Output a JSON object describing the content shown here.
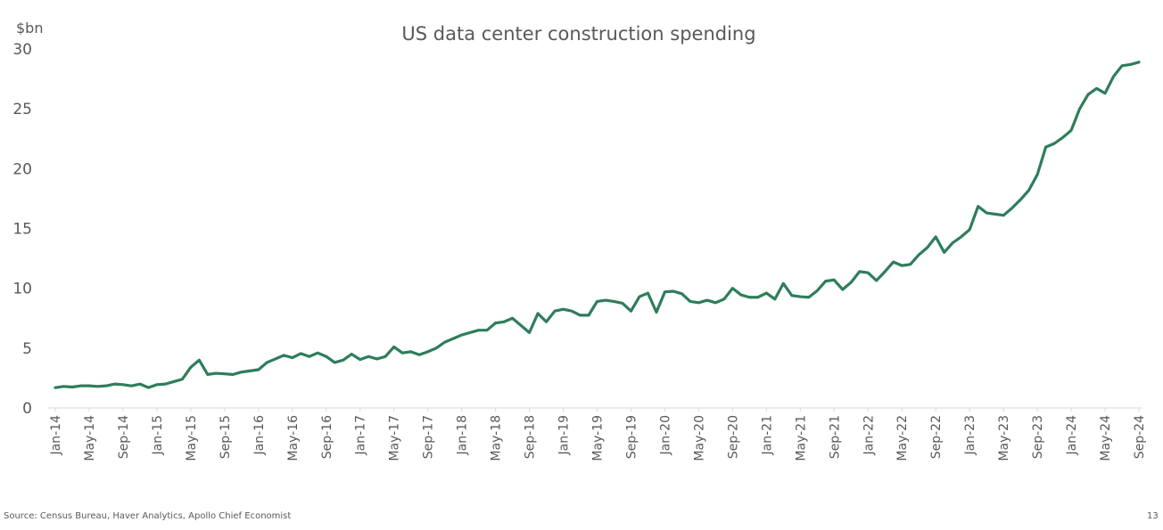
{
  "footer": {
    "source": "Source: Census Bureau, Haver Analytics, Apollo Chief Economist",
    "page_number": "13"
  },
  "chart_data": {
    "type": "line",
    "title": "US data center construction spending",
    "ylabel": "$bn",
    "ylim": [
      0,
      30
    ],
    "yticks": [
      0,
      5,
      10,
      15,
      20,
      25,
      30
    ],
    "grid": false,
    "line_color": "#2E7D5B",
    "xtick_labels": [
      "Jan-14",
      "May-14",
      "Sep-14",
      "Jan-15",
      "May-15",
      "Sep-15",
      "Jan-16",
      "May-16",
      "Sep-16",
      "Jan-17",
      "May-17",
      "Sep-17",
      "Jan-18",
      "May-18",
      "Sep-18",
      "Jan-19",
      "May-19",
      "Sep-19",
      "Jan-20",
      "May-20",
      "Sep-20",
      "Jan-21",
      "May-21",
      "Sep-21",
      "Jan-22",
      "May-22",
      "Sep-22",
      "Jan-23",
      "May-23",
      "Sep-23",
      "Jan-24",
      "May-24",
      "Sep-24"
    ],
    "series": [
      {
        "start": "Jan-14",
        "frequency": "monthly",
        "values": [
          1.7,
          1.8,
          1.75,
          1.85,
          1.85,
          1.8,
          1.85,
          2.0,
          1.95,
          1.85,
          2.0,
          1.7,
          1.95,
          2.0,
          2.2,
          2.4,
          3.4,
          4.0,
          2.8,
          2.9,
          2.85,
          2.8,
          3.0,
          3.1,
          3.2,
          3.8,
          4.1,
          4.4,
          4.2,
          4.55,
          4.3,
          4.6,
          4.3,
          3.8,
          4.0,
          4.5,
          4.05,
          4.3,
          4.1,
          4.3,
          5.1,
          4.6,
          4.7,
          4.45,
          4.7,
          5.0,
          5.5,
          5.8,
          6.1,
          6.3,
          6.5,
          6.5,
          7.1,
          7.2,
          7.5,
          6.9,
          6.3,
          7.9,
          7.2,
          8.1,
          8.25,
          8.1,
          7.75,
          7.75,
          8.9,
          9.0,
          8.9,
          8.75,
          8.1,
          9.3,
          9.6,
          8.0,
          9.7,
          9.75,
          9.55,
          8.9,
          8.8,
          9.0,
          8.8,
          9.1,
          10.0,
          9.45,
          9.25,
          9.25,
          9.6,
          9.1,
          10.4,
          9.4,
          9.3,
          9.25,
          9.8,
          10.6,
          10.7,
          9.9,
          10.5,
          11.4,
          11.3,
          10.65,
          11.4,
          12.2,
          11.9,
          12.0,
          12.8,
          13.4,
          14.3,
          13.0,
          13.8,
          14.3,
          14.9,
          16.85,
          16.3,
          16.2,
          16.1,
          16.7,
          17.4,
          18.2,
          19.5,
          21.8,
          22.1,
          22.6,
          23.2,
          25.0,
          26.2,
          26.7,
          26.3,
          27.7,
          28.6,
          28.7,
          28.9
        ]
      }
    ]
  }
}
